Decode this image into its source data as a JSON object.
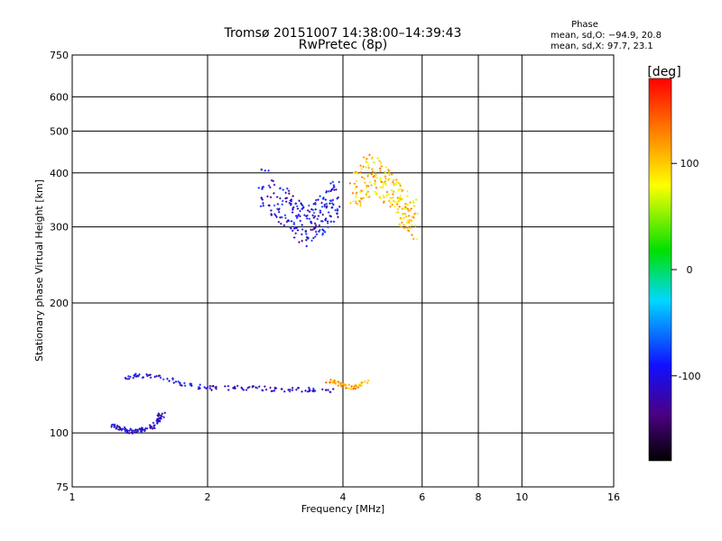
{
  "chart_data": {
    "type": "scatter",
    "title": "Tromsø 20151007 14:38:00–14:39:43",
    "subtitle": "RwPretec (8p)",
    "xlabel": "Frequency [MHz]",
    "ylabel": "Stationary phase Virtual Height [km]",
    "x_scale": "log",
    "y_scale": "log",
    "xlim": [
      1,
      16
    ],
    "ylim": [
      75,
      750
    ],
    "x_ticks": [
      1,
      2,
      4,
      6,
      8,
      10,
      16
    ],
    "x_tick_labels": [
      "1",
      "2",
      "4",
      "6",
      "8",
      "10",
      "16"
    ],
    "y_ticks": [
      75,
      100,
      200,
      300,
      400,
      500,
      600,
      750
    ],
    "y_tick_labels": [
      "75",
      "100",
      "200",
      "300",
      "400",
      "500",
      "600",
      "750"
    ],
    "grid": true,
    "stats": {
      "heading": "Phase",
      "line1": "mean, sd,O: −94.9, 20.8",
      "line2": "mean, sd,X:  97.7, 23.1"
    },
    "colorbar": {
      "label": "[deg]",
      "range": [
        -180,
        180
      ],
      "ticks": [
        100,
        0,
        -100
      ],
      "tick_labels": [
        "100",
        "0",
        "-100"
      ],
      "colormap": "rainbow (black-purple-blue-cyan-green-yellow-red)"
    },
    "traces": [
      {
        "component": "O",
        "note": "low trace",
        "x": [
          1.22,
          1.28,
          1.34,
          1.4,
          1.46,
          1.52,
          1.56,
          1.6
        ],
        "y": [
          104,
          102,
          101,
          101,
          102,
          104,
          108,
          112
        ],
        "phase": -110
      },
      {
        "component": "O",
        "note": "E-region trace",
        "x": [
          1.3,
          1.4,
          1.6,
          1.8,
          2.0,
          2.3,
          2.6,
          3.0,
          3.4,
          3.8
        ],
        "y": [
          134,
          136,
          134,
          129,
          127,
          127,
          127,
          126,
          126,
          125
        ],
        "phase": -105
      },
      {
        "component": "X",
        "note": "upper trace",
        "x": [
          3.7,
          3.9,
          4.1,
          4.3,
          4.5
        ],
        "y": [
          132,
          130,
          128,
          128,
          131
        ],
        "phase": 110
      },
      {
        "component": "O",
        "note": "F-region cluster",
        "x": [
          2.6,
          3.0,
          3.3,
          3.6,
          3.9
        ],
        "y": [
          380,
          330,
          300,
          320,
          360
        ],
        "phase": -100
      },
      {
        "component": "X",
        "note": "F-region cluster",
        "x": [
          4.2,
          4.6,
          5.0,
          5.4,
          5.8
        ],
        "y": [
          360,
          400,
          370,
          330,
          310
        ],
        "phase": 100
      }
    ]
  }
}
